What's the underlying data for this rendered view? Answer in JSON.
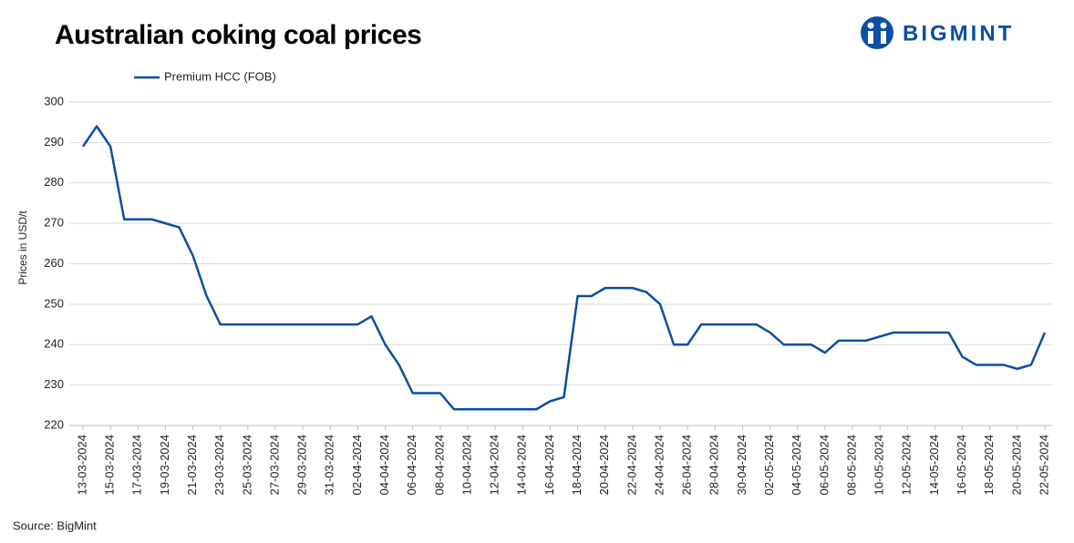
{
  "brand": "BIGMINT",
  "chart_data": {
    "type": "line",
    "title": "Australian coking coal prices",
    "ylabel": "Prices in USD/t",
    "source": "Source: BigMint",
    "categories": [
      "13-03-2024",
      null,
      "15-03-2024",
      null,
      "17-03-2024",
      null,
      "19-03-2024",
      null,
      "21-03-2024",
      null,
      "23-03-2024",
      null,
      "25-03-2024",
      null,
      "27-03-2024",
      null,
      "29-03-2024",
      null,
      "31-03-2024",
      null,
      "02-04-2024",
      null,
      "04-04-2024",
      null,
      "06-04-2024",
      null,
      "08-04-2024",
      null,
      "10-04-2024",
      null,
      "12-04-2024",
      null,
      "14-04-2024",
      null,
      "16-04-2024",
      null,
      "18-04-2024",
      null,
      "20-04-2024",
      null,
      "22-04-2024",
      null,
      "24-04-2024",
      null,
      "26-04-2024",
      null,
      "28-04-2024",
      null,
      "30-04-2024",
      null,
      "02-05-2024",
      null,
      "04-05-2024",
      null,
      "06-05-2024",
      null,
      "08-05-2024",
      null,
      "10-05-2024",
      null,
      "12-05-2024",
      null,
      "14-05-2024",
      null,
      "16-05-2024",
      null,
      "18-05-2024",
      null,
      "20-05-2024",
      null,
      "22-05-2024"
    ],
    "series": [
      {
        "name": "Premium HCC (FOB)",
        "color": "#0b4ea2",
        "values": [
          289,
          294,
          289,
          271,
          271,
          271,
          270,
          269,
          262,
          252,
          245,
          245,
          245,
          245,
          245,
          245,
          245,
          245,
          245,
          245,
          245,
          247,
          240,
          235,
          228,
          228,
          228,
          224,
          224,
          224,
          224,
          224,
          224,
          224,
          226,
          227,
          252,
          252,
          254,
          254,
          254,
          253,
          250,
          240,
          240,
          245,
          245,
          245,
          245,
          245,
          243,
          240,
          240,
          240,
          238,
          241,
          241,
          241,
          242,
          243,
          243,
          243,
          243,
          243,
          237,
          235,
          235,
          235,
          234,
          235,
          243
        ]
      }
    ],
    "ylim": [
      220,
      300
    ],
    "yticks": [
      220,
      230,
      240,
      250,
      260,
      270,
      280,
      290,
      300
    ],
    "grid": true,
    "legend": "top"
  }
}
